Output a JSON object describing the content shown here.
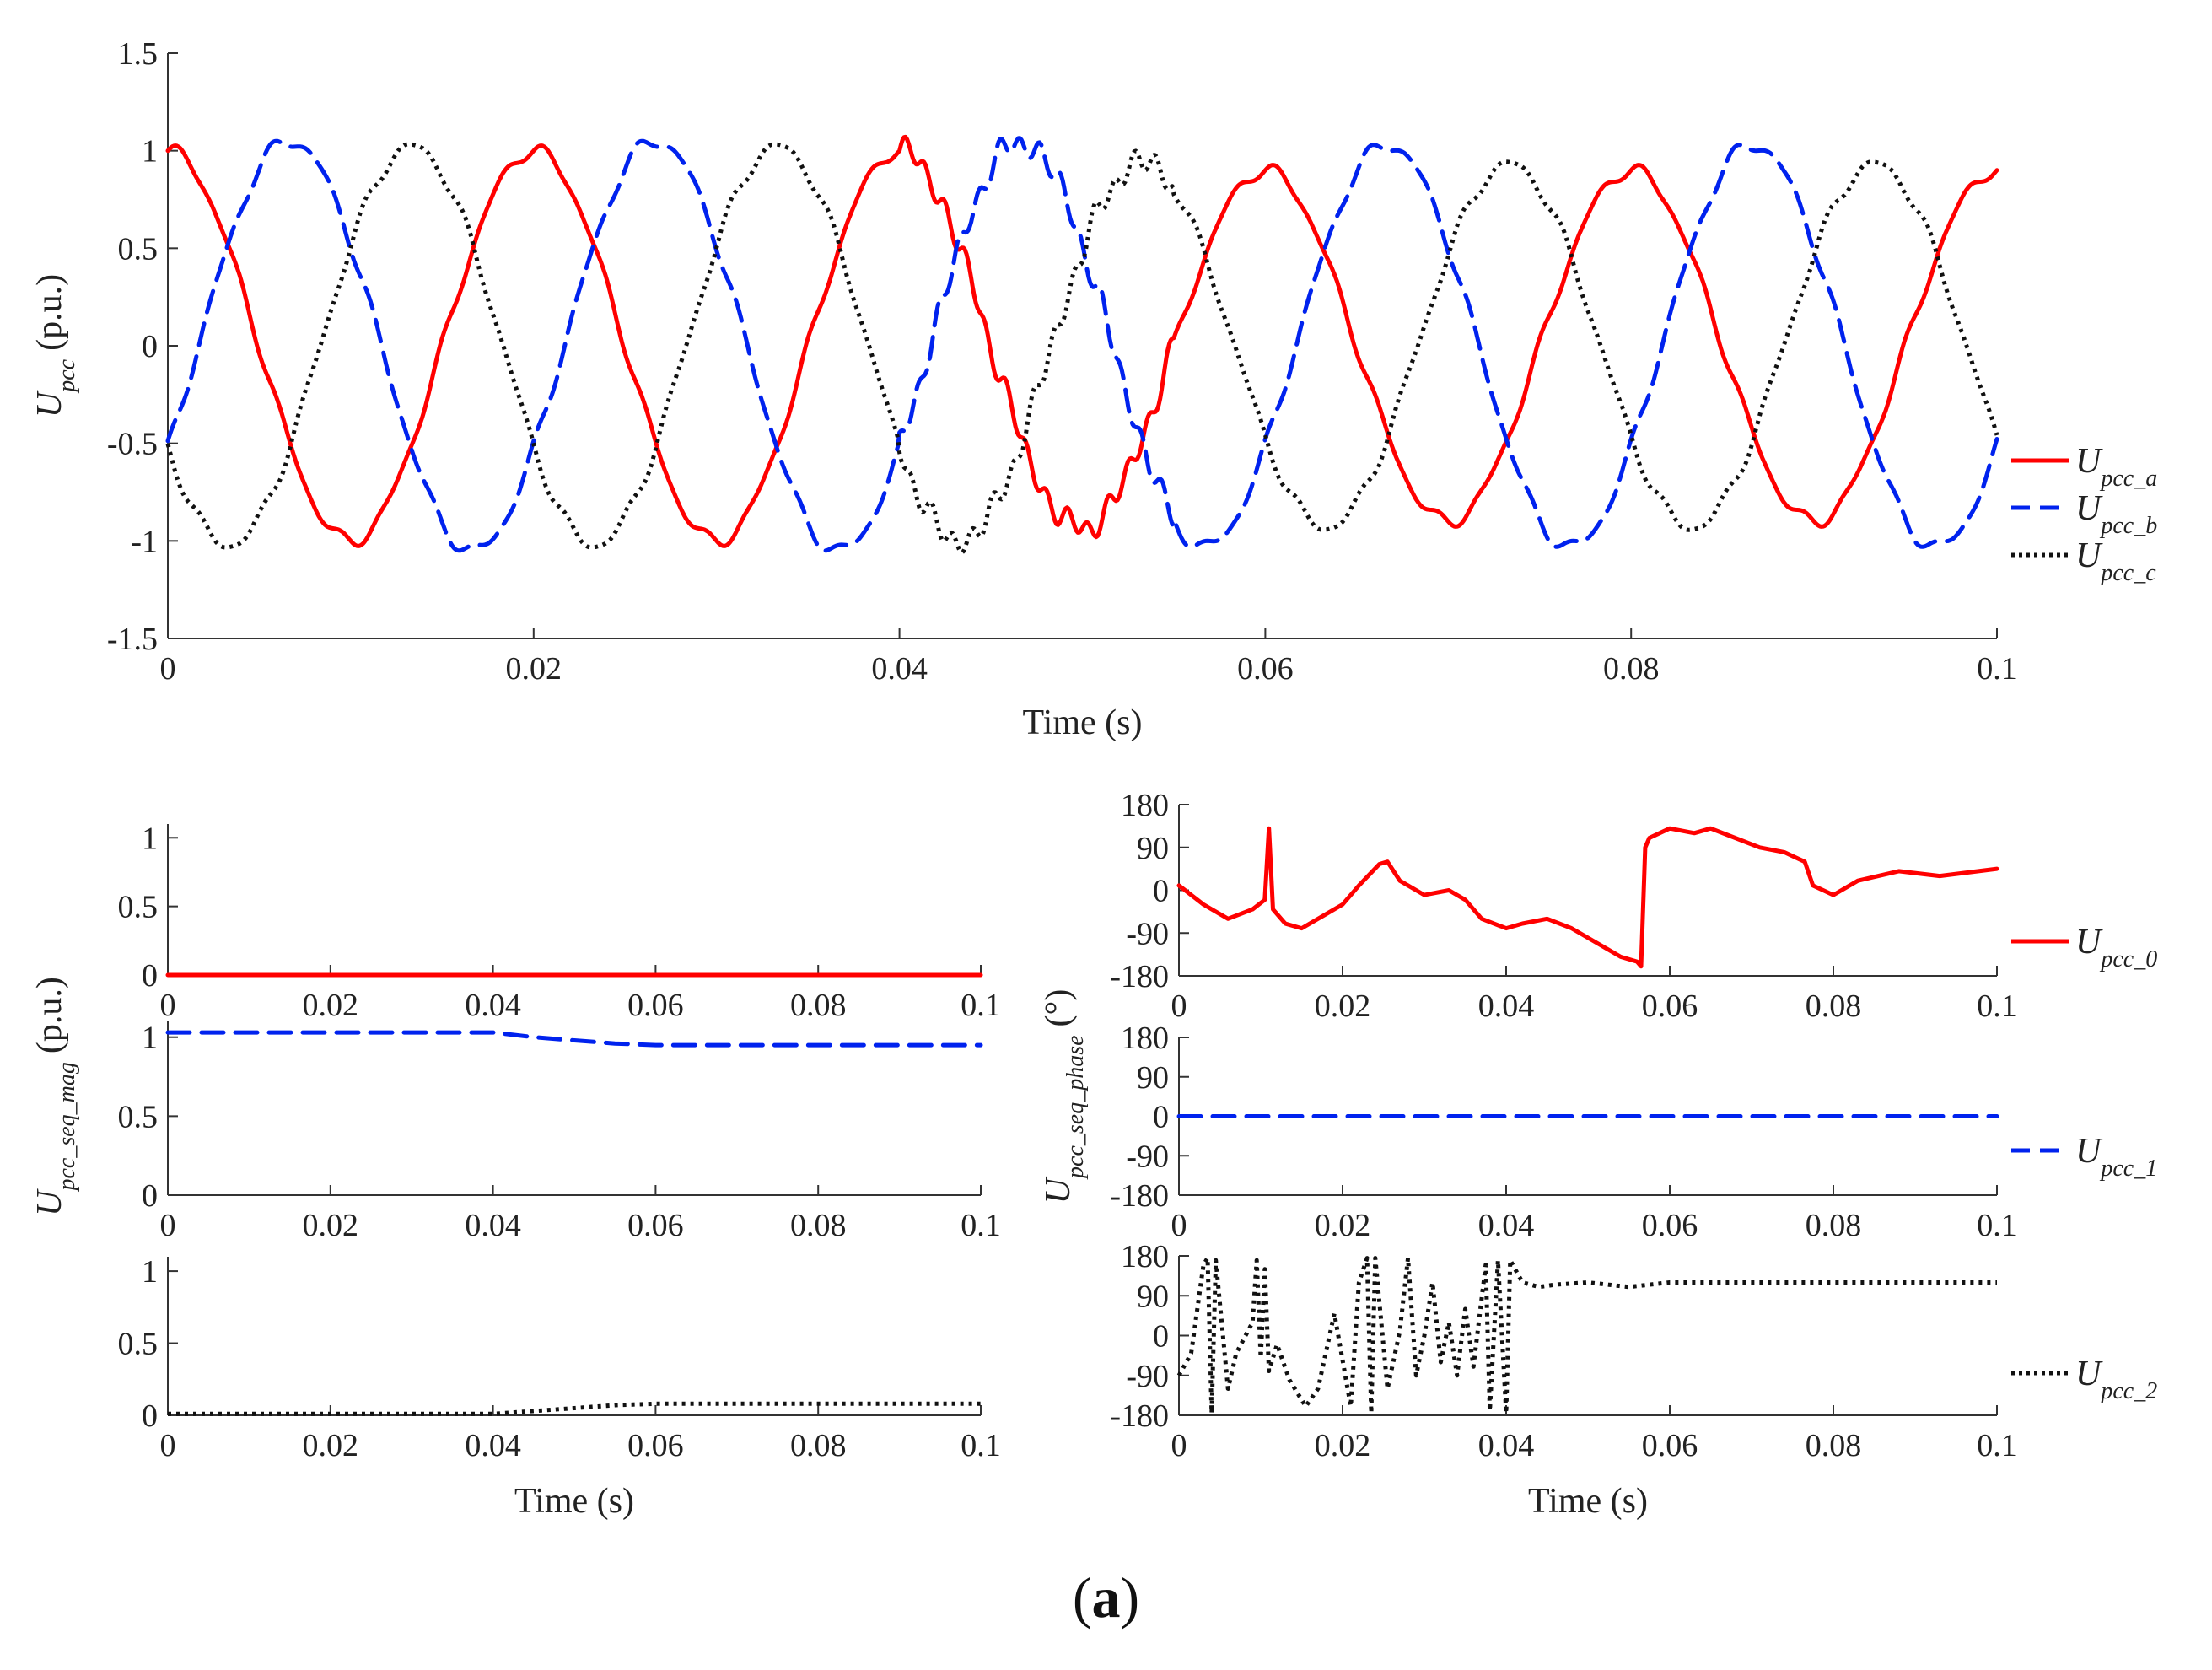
{
  "caption": {
    "open": "(",
    "letter": "a",
    "close": ")"
  },
  "chart_data": [
    {
      "id": "top",
      "type": "line",
      "xlabel": "Time (s)",
      "ylabel_main": "U",
      "ylabel_sub": "pcc",
      "ylabel_unit": "(p.u.)",
      "xlim": [
        0,
        0.1
      ],
      "ylim": [
        -1.5,
        1.5
      ],
      "xticks": [
        0,
        0.02,
        0.04,
        0.06,
        0.08,
        0.1
      ],
      "xtick_labels": [
        "0",
        "0.02",
        "0.04",
        "0.06",
        "0.08",
        "0.1"
      ],
      "yticks": [
        -1.5,
        -1,
        -0.5,
        0,
        0.5,
        1,
        1.5
      ],
      "ytick_labels": [
        "-1.5",
        "-1",
        "-0.5",
        "0",
        "0.5",
        "1",
        "1.5"
      ],
      "frequency_hz": 50,
      "series": [
        {
          "name": "pcc_a",
          "legend_main": "U",
          "legend_sub": "pcc_a",
          "color": "#ff0000",
          "style": "solid",
          "phase_deg": 90,
          "amplitude_before": 1.0,
          "amplitude_after": 0.9
        },
        {
          "name": "pcc_b",
          "legend_main": "U",
          "legend_sub": "pcc_b",
          "color": "#0022ee",
          "style": "dashed",
          "phase_deg": -30,
          "amplitude_before": 1.05,
          "amplitude_after": 1.03
        },
        {
          "name": "pcc_c",
          "legend_main": "U",
          "legend_sub": "pcc_c",
          "color": "#111111",
          "style": "dotted",
          "phase_deg": 210,
          "amplitude_before": 1.02,
          "amplitude_after": 0.93
        }
      ]
    },
    {
      "id": "mag",
      "type": "line",
      "ylabel_main": "U",
      "ylabel_sub": "pcc_seq_mag",
      "ylabel_unit": "(p.u.)",
      "xlabel": "Time (s)",
      "xlim": [
        0,
        0.1
      ],
      "ylim": [
        0,
        1.1
      ],
      "xticks": [
        0,
        0.02,
        0.04,
        0.06,
        0.08,
        0.1
      ],
      "xtick_labels": [
        "0",
        "0.02",
        "0.04",
        "0.06",
        "0.08",
        "0.1"
      ],
      "yticks": [
        0,
        0.5,
        1
      ],
      "ytick_labels": [
        "0",
        "0.5",
        "1"
      ],
      "panels": [
        {
          "name": "mag_0",
          "color": "#ff0000",
          "style": "solid",
          "x": [
            0,
            0.1
          ],
          "y": [
            0,
            0
          ]
        },
        {
          "name": "mag_1",
          "color": "#0022ee",
          "style": "dashed",
          "x": [
            0,
            0.04,
            0.045,
            0.05,
            0.055,
            0.06,
            0.1
          ],
          "y": [
            1.03,
            1.03,
            1.0,
            0.98,
            0.96,
            0.95,
            0.95
          ]
        },
        {
          "name": "mag_2",
          "color": "#111111",
          "style": "dotted",
          "x": [
            0,
            0.04,
            0.045,
            0.05,
            0.055,
            0.06,
            0.1
          ],
          "y": [
            0.01,
            0.01,
            0.03,
            0.05,
            0.07,
            0.08,
            0.08
          ]
        }
      ]
    },
    {
      "id": "phase",
      "type": "line",
      "ylabel_main": "U",
      "ylabel_sub": "pcc_seq_phase",
      "ylabel_unit": "(°)",
      "xlabel": "Time (s)",
      "xlim": [
        0,
        0.1
      ],
      "ylim": [
        -180,
        180
      ],
      "xticks": [
        0,
        0.02,
        0.04,
        0.06,
        0.08,
        0.1
      ],
      "xtick_labels": [
        "0",
        "0.02",
        "0.04",
        "0.06",
        "0.08",
        "0.1"
      ],
      "yticks": [
        -180,
        -90,
        0,
        90,
        180
      ],
      "ytick_labels": [
        "-180",
        "-90",
        "0",
        "90",
        "180"
      ],
      "panels": [
        {
          "name": "phase_0",
          "legend_main": "U",
          "legend_sub": "pcc_0",
          "color": "#ff0000",
          "style": "solid",
          "x": [
            0,
            0.003,
            0.006,
            0.009,
            0.0105,
            0.011,
            0.0115,
            0.013,
            0.015,
            0.018,
            0.02,
            0.022,
            0.0245,
            0.0255,
            0.027,
            0.03,
            0.033,
            0.035,
            0.037,
            0.04,
            0.042,
            0.045,
            0.048,
            0.051,
            0.054,
            0.056,
            0.0565,
            0.057,
            0.0575,
            0.06,
            0.063,
            0.065,
            0.068,
            0.071,
            0.074,
            0.0765,
            0.0775,
            0.08,
            0.083,
            0.088,
            0.093,
            0.1
          ],
          "y": [
            10,
            -30,
            -60,
            -40,
            -20,
            130,
            -40,
            -70,
            -80,
            -50,
            -30,
            10,
            55,
            60,
            20,
            -10,
            0,
            -20,
            -60,
            -80,
            -70,
            -60,
            -80,
            -110,
            -140,
            -150,
            -160,
            90,
            110,
            130,
            120,
            130,
            110,
            90,
            80,
            60,
            10,
            -10,
            20,
            40,
            30,
            45
          ]
        },
        {
          "name": "phase_1",
          "legend_main": "U",
          "legend_sub": "pcc_1",
          "color": "#0022ee",
          "style": "dashed",
          "x": [
            0,
            0.1
          ],
          "y": [
            0,
            0
          ]
        },
        {
          "name": "phase_2",
          "legend_main": "U",
          "legend_sub": "pcc_2",
          "color": "#111111",
          "style": "dotted",
          "x": [
            0,
            0.0015,
            0.003,
            0.0035,
            0.004,
            0.0045,
            0.006,
            0.007,
            0.009,
            0.0095,
            0.01,
            0.0105,
            0.011,
            0.012,
            0.0135,
            0.0155,
            0.017,
            0.019,
            0.021,
            0.022,
            0.023,
            0.0235,
            0.024,
            0.0255,
            0.027,
            0.028,
            0.029,
            0.03,
            0.031,
            0.032,
            0.033,
            0.034,
            0.035,
            0.036,
            0.0375,
            0.038,
            0.039,
            0.04,
            0.0405,
            0.042,
            0.044,
            0.046,
            0.05,
            0.055,
            0.06,
            0.07,
            0.08,
            0.09,
            0.1
          ],
          "y": [
            -90,
            -40,
            160,
            175,
            -175,
            170,
            -120,
            -40,
            30,
            170,
            -50,
            150,
            -80,
            -20,
            -100,
            -160,
            -120,
            50,
            -160,
            120,
            175,
            -175,
            175,
            -120,
            10,
            175,
            -90,
            0,
            120,
            -60,
            30,
            -90,
            60,
            -70,
            160,
            -170,
            170,
            -175,
            170,
            120,
            110,
            115,
            120,
            110,
            120,
            120,
            120,
            120,
            120
          ]
        }
      ]
    }
  ]
}
